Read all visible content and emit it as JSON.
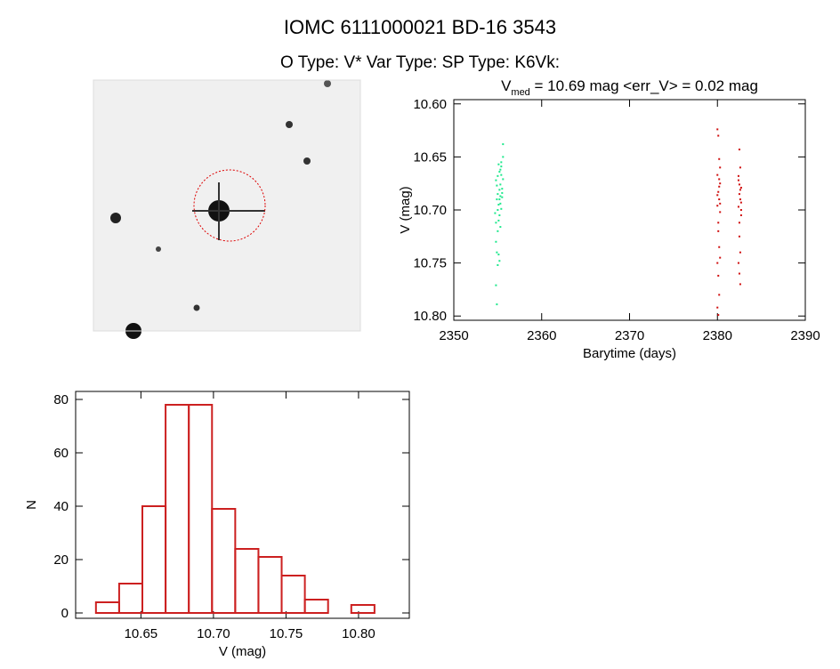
{
  "header": {
    "title": "IOMC 6111000021   BD-16  3543",
    "subtitle": "O Type: V*  Var Type:   SP Type: K6Vk:"
  },
  "chart_data": [
    {
      "type": "scatter",
      "title": [
        "V",
        "med",
        " = 10.69 mag <err_V> = 0.02 mag"
      ],
      "x_label": "Barytime (days)",
      "y_label": "V (mag)",
      "xlim": [
        2350,
        2390
      ],
      "xticks": [
        2350,
        2360,
        2370,
        2380,
        2390
      ],
      "ylim": [
        10.596,
        10.804
      ],
      "y_inverted": true,
      "yticks": [
        {
          "value": 10.6,
          "label": "10.60"
        },
        10.65,
        {
          "value": 10.7,
          "label": "10.70"
        },
        10.75,
        {
          "value": 10.8,
          "label": "10.80"
        }
      ],
      "series": [
        {
          "color": "#1ee88c",
          "x": [
            2354.8,
            2355.0,
            2355.2,
            2355.4,
            2354.9,
            2355.1,
            2355.3,
            2355.5,
            2354.7,
            2355.0,
            2355.2,
            2355.4,
            2355.6,
            2354.8,
            2355.1,
            2355.3,
            2355.5,
            2354.9,
            2355.2,
            2355.4,
            2355.0,
            2355.3,
            2354.8,
            2355.1,
            2355.0,
            2355.2,
            2354.9,
            2355.4,
            2355.6,
            2354.8,
            2354.9,
            2355.3,
            2355.5,
            2355.2,
            2355.0,
            2355.6,
            2355.1,
            2355.3
          ],
          "values": [
            10.672,
            10.668,
            10.681,
            10.659,
            10.69,
            10.695,
            10.676,
            10.688,
            10.703,
            10.685,
            10.664,
            10.699,
            10.671,
            10.712,
            10.657,
            10.694,
            10.68,
            10.677,
            10.705,
            10.667,
            10.72,
            10.662,
            10.73,
            10.742,
            10.752,
            10.748,
            10.74,
            10.655,
            10.65,
            10.771,
            10.789,
            10.716,
            10.684,
            10.69,
            10.7,
            10.638,
            10.71,
            10.687
          ]
        },
        {
          "color": "#d01010",
          "x": [
            2380.0,
            2380.1,
            2380.2,
            2380.0,
            2380.3,
            2380.1,
            2380.2,
            2380.0,
            2380.3,
            2380.1,
            2380.2,
            2380.0,
            2380.3,
            2380.1,
            2380.2,
            2380.0,
            2380.3,
            2380.1,
            2380.2,
            2380.0,
            2380.1,
            2380.2,
            2380.3,
            2382.5,
            2382.6,
            2382.4,
            2382.7,
            2382.5,
            2382.6,
            2382.4,
            2382.7,
            2382.5,
            2382.6,
            2382.4,
            2382.7,
            2382.5,
            2382.6,
            2382.4,
            2382.5,
            2382.6,
            2382.7,
            2382.5
          ],
          "values": [
            10.624,
            10.63,
            10.652,
            10.667,
            10.675,
            10.683,
            10.69,
            10.696,
            10.702,
            10.712,
            10.678,
            10.686,
            10.66,
            10.72,
            10.735,
            10.75,
            10.745,
            10.762,
            10.78,
            10.792,
            10.799,
            10.671,
            10.694,
            10.643,
            10.66,
            10.672,
            10.679,
            10.685,
            10.69,
            10.697,
            10.705,
            10.712,
            10.681,
            10.668,
            10.693,
            10.725,
            10.74,
            10.75,
            10.76,
            10.77,
            10.7,
            10.676
          ]
        }
      ]
    },
    {
      "type": "histogram",
      "x_label": "V (mag)",
      "y_label": "N",
      "color": "#cc2020",
      "bins": [
        10.619,
        10.635,
        10.651,
        10.667,
        10.683,
        10.699,
        10.715,
        10.731,
        10.747,
        10.763,
        10.779,
        10.795,
        10.811
      ],
      "values": [
        4,
        11,
        40,
        78,
        78,
        39,
        24,
        21,
        14,
        5,
        0,
        3
      ],
      "xlim": [
        10.605,
        10.835
      ],
      "xticks": [
        10.65,
        {
          "value": 10.7,
          "label": "10.70"
        },
        10.75,
        {
          "value": 10.8,
          "label": "10.80"
        }
      ],
      "ylim": [
        -2,
        83
      ],
      "yticks": [
        0,
        20,
        40,
        60,
        80
      ]
    }
  ]
}
